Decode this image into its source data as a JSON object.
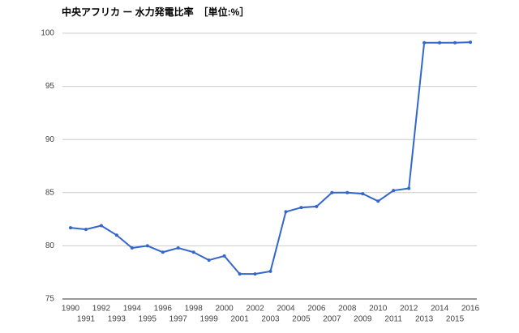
{
  "chart_data": {
    "type": "line",
    "title": "中央アフリカ ー 水力発電比率　［単位:%］",
    "x": [
      1990,
      1991,
      1992,
      1993,
      1994,
      1995,
      1996,
      1997,
      1998,
      1999,
      2000,
      2001,
      2002,
      2003,
      2004,
      2005,
      2006,
      2007,
      2008,
      2009,
      2010,
      2011,
      2012,
      2013,
      2014,
      2015,
      2016
    ],
    "series": [
      {
        "color": "#3366cc",
        "values": [
          81.7,
          81.55,
          81.9,
          81.0,
          79.8,
          80.0,
          79.4,
          79.8,
          79.4,
          78.65,
          79.05,
          77.35,
          77.35,
          77.6,
          83.2,
          83.6,
          83.7,
          85.0,
          85.0,
          84.9,
          84.2,
          85.2,
          85.4,
          99.1,
          99.1,
          99.1,
          99.15
        ]
      }
    ],
    "xlim": [
      1990,
      2016
    ],
    "ylim": [
      75,
      100
    ],
    "yticks": [
      75,
      80,
      85,
      90,
      95,
      100
    ],
    "grid": true
  }
}
